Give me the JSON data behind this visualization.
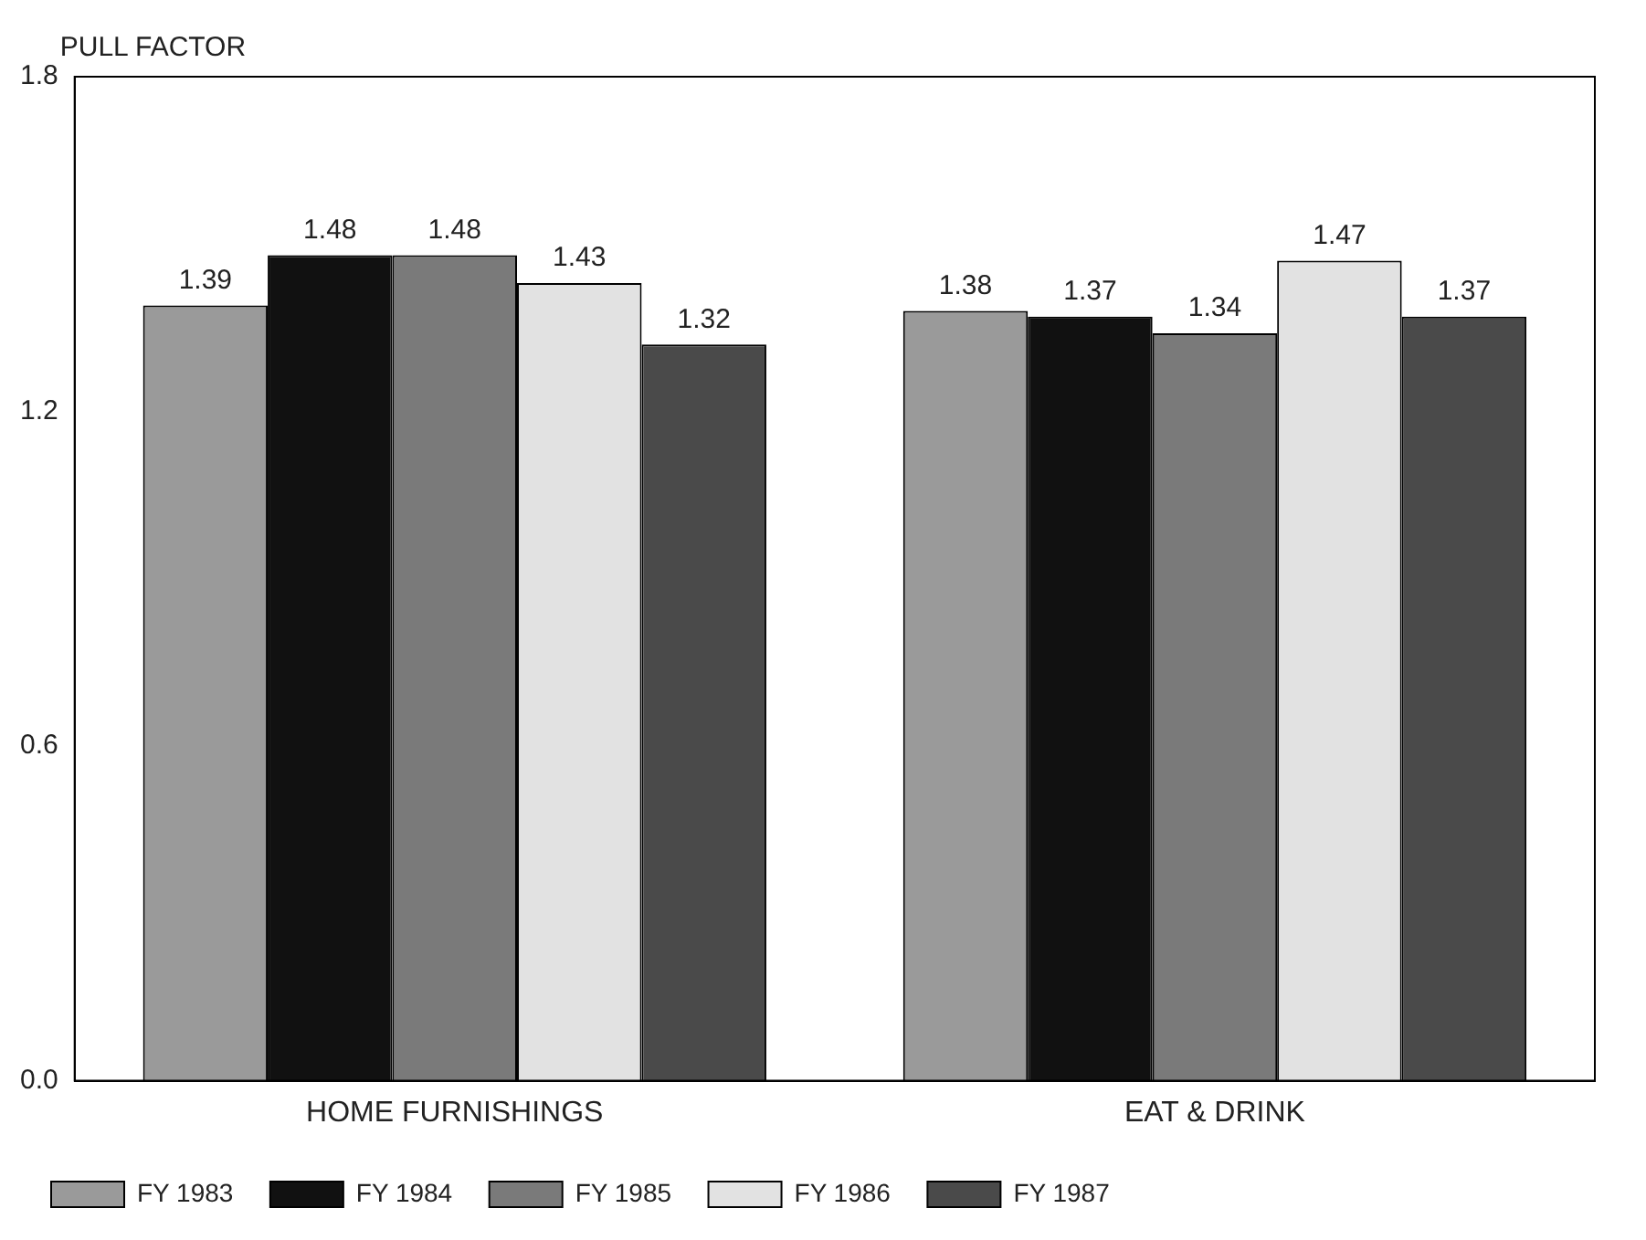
{
  "chart_data": {
    "type": "bar",
    "ylabel": "PULL FACTOR",
    "categories": [
      "HOME FURNISHINGS",
      "EAT & DRINK"
    ],
    "series": [
      {
        "name": "FY 1983",
        "color": "#9a9a9a",
        "values": [
          1.39,
          1.38
        ]
      },
      {
        "name": "FY 1984",
        "color": "#111111",
        "values": [
          1.48,
          1.37
        ]
      },
      {
        "name": "FY 1985",
        "color": "#7a7a7a",
        "values": [
          1.48,
          1.34
        ]
      },
      {
        "name": "FY 1986",
        "color": "#e2e2e2",
        "values": [
          1.43,
          1.47
        ]
      },
      {
        "name": "FY 1987",
        "color": "#4a4a4a",
        "values": [
          1.32,
          1.37
        ]
      }
    ],
    "ylim": [
      0,
      1.8
    ],
    "yticks": [
      {
        "value": 0,
        "label": "0.0"
      },
      0.6,
      1.2,
      1.8
    ],
    "grid": false,
    "data_labels": true,
    "legend": "bottom"
  }
}
